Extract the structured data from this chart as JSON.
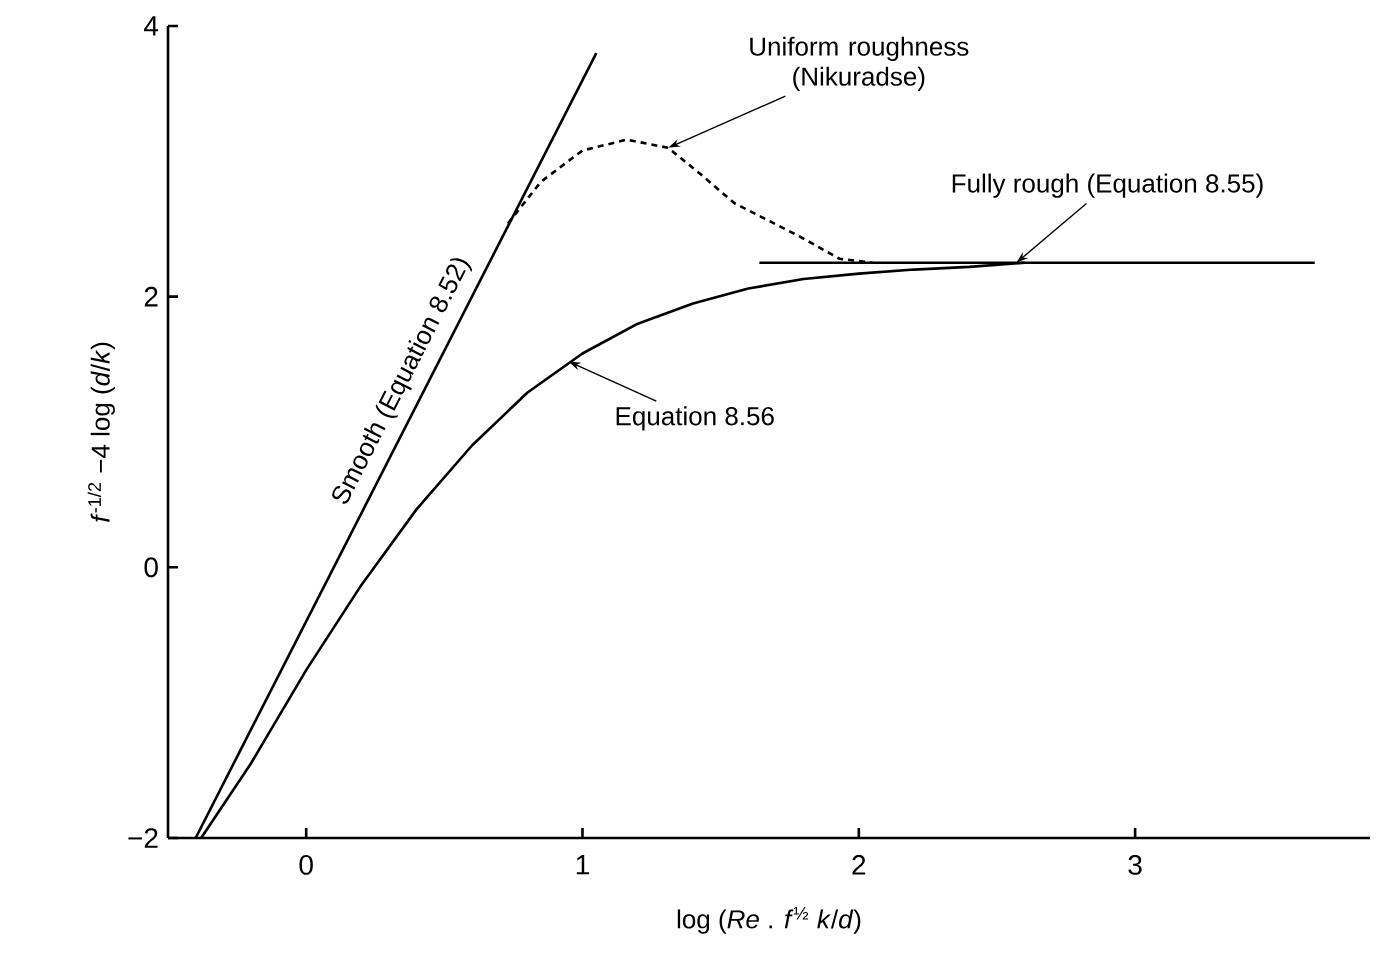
{
  "chart_data": {
    "type": "line",
    "xlabel": "log (*Re* . *f*$^{½}$ *k*/*d*)",
    "ylabel": "*f*$^{-1/2}$ −4 log (*d*/*k*)",
    "xlim": [
      -0.5,
      3.85
    ],
    "ylim": [
      -2,
      4
    ],
    "xticks": [
      0,
      1,
      2,
      3
    ],
    "yticks": [
      {
        "value": -2,
        "label": "−2"
      },
      0,
      2,
      4
    ],
    "grid": false,
    "series": [
      {
        "color": "#000000",
        "line_style": "solid",
        "x": [
          -0.4,
          1.05
        ],
        "values": [
          -2.0,
          3.8
        ]
      },
      {
        "color": "#000000",
        "line_style": "solid",
        "x": [
          1.64,
          3.65
        ],
        "values": [
          2.25,
          2.25
        ]
      },
      {
        "color": "#000000",
        "line_style": "solid",
        "x": [
          -0.38,
          -0.2,
          0,
          0.2,
          0.4,
          0.6,
          0.8,
          1.0,
          1.2,
          1.4,
          1.6,
          1.8,
          2.0,
          2.2,
          2.4,
          2.6
        ],
        "values": [
          -2.0,
          -1.45,
          -0.76,
          -0.13,
          0.43,
          0.9,
          1.29,
          1.58,
          1.8,
          1.95,
          2.06,
          2.13,
          2.17,
          2.2,
          2.22,
          2.25
        ]
      },
      {
        "color": "#000000",
        "line_style": "dashed",
        "x": [
          0.73,
          0.85,
          1.0,
          1.16,
          1.31,
          1.43,
          1.55,
          1.79,
          1.93,
          2.05
        ],
        "values": [
          2.54,
          2.85,
          3.08,
          3.16,
          3.1,
          2.9,
          2.69,
          2.44,
          2.28,
          2.25
        ]
      }
    ],
    "annotations": [
      {
        "text": "Uniform roughness (Nikuradse)",
        "x": 1.31,
        "y": 3.1
      },
      {
        "text": "Fully rough (Equation 8.55)",
        "x": 2.57,
        "y": 2.25
      },
      {
        "text": "Equation 8.56",
        "x": 0.95,
        "y": 1.52
      },
      {
        "text": "Smooth (Equation 8.52)",
        "x": 0.42,
        "y": 1.28
      }
    ]
  }
}
